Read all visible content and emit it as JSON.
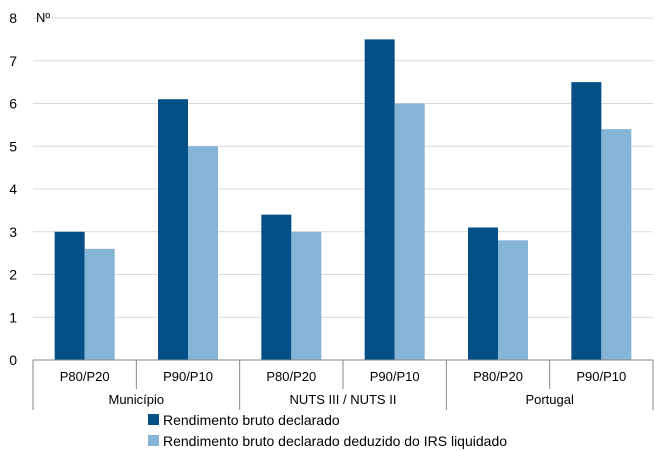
{
  "chart_data": {
    "type": "bar",
    "unit_label": "Nº",
    "groups": [
      {
        "name": "Município",
        "categories": [
          "P80/P20",
          "P90/P10"
        ]
      },
      {
        "name": "NUTS III / NUTS II",
        "categories": [
          "P80/P20",
          "P90/P10"
        ]
      },
      {
        "name": "Portugal",
        "categories": [
          "P80/P20",
          "P90/P10"
        ]
      }
    ],
    "categories": [
      "P80/P20",
      "P90/P10",
      "P80/P20",
      "P90/P10",
      "P80/P20",
      "P90/P10"
    ],
    "series": [
      {
        "name": "Rendimento bruto declarado",
        "color": "#044f85",
        "values": [
          3.0,
          6.1,
          3.4,
          7.5,
          3.1,
          6.5
        ]
      },
      {
        "name": "Rendimento bruto declarado deduzido do IRS liquidado",
        "color": "#84b4d6",
        "values": [
          2.6,
          5.0,
          3.0,
          6.0,
          2.8,
          5.4
        ]
      }
    ],
    "ylim": [
      0,
      8
    ],
    "yticks": [
      "0",
      "1",
      "2",
      "3",
      "4",
      "5",
      "6",
      "7",
      "8"
    ],
    "grid": true,
    "legend_position": "bottom"
  }
}
